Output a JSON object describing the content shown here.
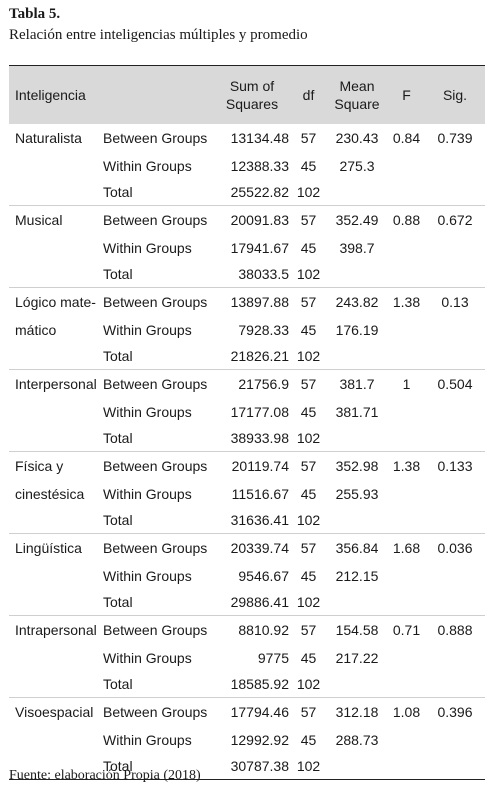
{
  "caption": {
    "title": "Tabla 5.",
    "subtitle": "Relación entre inteligencias múltiples y promedio"
  },
  "table": {
    "headers": {
      "inteligencia": "Inteligencia",
      "sum_of_squares_line1": "Sum of",
      "sum_of_squares_line2": "Squares",
      "df": "df",
      "mean_square_line1": "Mean",
      "mean_square_line2": "Square",
      "f": "F",
      "sig": "Sig."
    },
    "groups": [
      {
        "name_line1": "Naturalista",
        "name_line2": "",
        "rows": [
          {
            "source": "Between Groups",
            "ss": "13134.48",
            "df": "57",
            "ms": "230.43",
            "f": "0.84",
            "sig": "0.739"
          },
          {
            "source": "Within Groups",
            "ss": "12388.33",
            "df": "45",
            "ms": "275.3",
            "f": "",
            "sig": ""
          },
          {
            "source": "Total",
            "ss": "25522.82",
            "df": "102",
            "ms": "",
            "f": "",
            "sig": ""
          }
        ]
      },
      {
        "name_line1": "Musical",
        "name_line2": "",
        "rows": [
          {
            "source": "Between Groups",
            "ss": "20091.83",
            "df": "57",
            "ms": "352.49",
            "f": "0.88",
            "sig": "0.672"
          },
          {
            "source": "Within Groups",
            "ss": "17941.67",
            "df": "45",
            "ms": "398.7",
            "f": "",
            "sig": ""
          },
          {
            "source": "Total",
            "ss": "38033.5",
            "df": "102",
            "ms": "",
            "f": "",
            "sig": ""
          }
        ]
      },
      {
        "name_line1": "Lógico mate-",
        "name_line2": "mático",
        "rows": [
          {
            "source": "Between Groups",
            "ss": "13897.88",
            "df": "57",
            "ms": "243.82",
            "f": "1.38",
            "sig": "0.13"
          },
          {
            "source": "Within Groups",
            "ss": "7928.33",
            "df": "45",
            "ms": "176.19",
            "f": "",
            "sig": ""
          },
          {
            "source": "Total",
            "ss": "21826.21",
            "df": "102",
            "ms": "",
            "f": "",
            "sig": ""
          }
        ]
      },
      {
        "name_line1": "Interpersonal",
        "name_line2": "",
        "rows": [
          {
            "source": "Between Groups",
            "ss": "21756.9",
            "df": "57",
            "ms": "381.7",
            "f": "1",
            "sig": "0.504"
          },
          {
            "source": "Within Groups",
            "ss": "17177.08",
            "df": "45",
            "ms": "381.71",
            "f": "",
            "sig": ""
          },
          {
            "source": "Total",
            "ss": "38933.98",
            "df": "102",
            "ms": "",
            "f": "",
            "sig": ""
          }
        ]
      },
      {
        "name_line1": "Física y",
        "name_line2": "cinestésica",
        "rows": [
          {
            "source": "Between Groups",
            "ss": "20119.74",
            "df": "57",
            "ms": "352.98",
            "f": "1.38",
            "sig": "0.133"
          },
          {
            "source": "Within Groups",
            "ss": "11516.67",
            "df": "45",
            "ms": "255.93",
            "f": "",
            "sig": ""
          },
          {
            "source": "Total",
            "ss": "31636.41",
            "df": "102",
            "ms": "",
            "f": "",
            "sig": ""
          }
        ]
      },
      {
        "name_line1": "Lingüística",
        "name_line2": "",
        "rows": [
          {
            "source": "Between Groups",
            "ss": "20339.74",
            "df": "57",
            "ms": "356.84",
            "f": "1.68",
            "sig": "0.036"
          },
          {
            "source": "Within Groups",
            "ss": "9546.67",
            "df": "45",
            "ms": "212.15",
            "f": "",
            "sig": ""
          },
          {
            "source": "Total",
            "ss": "29886.41",
            "df": "102",
            "ms": "",
            "f": "",
            "sig": ""
          }
        ]
      },
      {
        "name_line1": "Intrapersonal",
        "name_line2": "",
        "rows": [
          {
            "source": "Between Groups",
            "ss": "8810.92",
            "df": "57",
            "ms": "154.58",
            "f": "0.71",
            "sig": "0.888"
          },
          {
            "source": "Within Groups",
            "ss": "9775",
            "df": "45",
            "ms": "217.22",
            "f": "",
            "sig": ""
          },
          {
            "source": "Total",
            "ss": "18585.92",
            "df": "102",
            "ms": "",
            "f": "",
            "sig": ""
          }
        ]
      },
      {
        "name_line1": "Visoespacial",
        "name_line2": "",
        "rows": [
          {
            "source": "Between Groups",
            "ss": "17794.46",
            "df": "57",
            "ms": "312.18",
            "f": "1.08",
            "sig": "0.396"
          },
          {
            "source": "Within Groups",
            "ss": "12992.92",
            "df": "45",
            "ms": "288.73",
            "f": "",
            "sig": ""
          },
          {
            "source": "Total",
            "ss": "30787.38",
            "df": "102",
            "ms": "",
            "f": "",
            "sig": ""
          }
        ]
      }
    ]
  },
  "source_note": "Fuente: elaboración Propia (2018)",
  "colors": {
    "header_background": "#d9d9d9",
    "rule": "#222222",
    "divider": "#cfcfcf"
  }
}
